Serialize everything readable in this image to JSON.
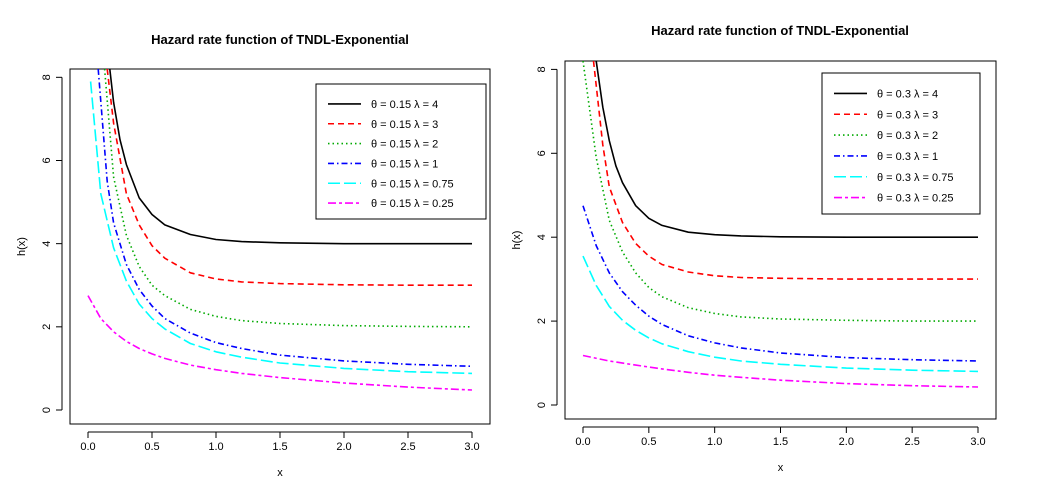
{
  "chart_data": [
    {
      "type": "line",
      "title": "Hazard rate function of TNDL-Exponential",
      "xlabel": "x",
      "ylabel": "h(x)",
      "xlim": [
        0,
        3
      ],
      "ylim": [
        0,
        8.2
      ],
      "xticks": [
        0.0,
        0.5,
        1.0,
        1.5,
        2.0,
        2.5,
        3.0
      ],
      "xtick_labels": [
        "0.0",
        "0.5",
        "1.0",
        "1.5",
        "2.0",
        "2.5",
        "3.0"
      ],
      "yticks": [
        0,
        2,
        4,
        6,
        8
      ],
      "ytick_labels": [
        "0",
        "2",
        "4",
        "6",
        "8"
      ],
      "legend_position": "top-right",
      "series": [
        {
          "name": "θ = 0.15  λ = 4",
          "color": "#000000",
          "dash": "solid",
          "x": [
            0.17,
            0.2,
            0.25,
            0.3,
            0.4,
            0.5,
            0.6,
            0.8,
            1.0,
            1.2,
            1.5,
            2.0,
            2.5,
            3.0
          ],
          "values": [
            8.2,
            7.4,
            6.5,
            5.9,
            5.1,
            4.7,
            4.45,
            4.22,
            4.1,
            4.05,
            4.02,
            4.0,
            4.0,
            4.0
          ]
        },
        {
          "name": "θ = 0.15  λ = 3",
          "color": "#ff0000",
          "dash": "dashed",
          "x": [
            0.15,
            0.2,
            0.3,
            0.4,
            0.5,
            0.6,
            0.8,
            1.0,
            1.2,
            1.5,
            2.0,
            2.5,
            3.0
          ],
          "values": [
            8.2,
            6.9,
            5.2,
            4.45,
            3.95,
            3.65,
            3.3,
            3.15,
            3.08,
            3.04,
            3.01,
            3.0,
            3.0
          ]
        },
        {
          "name": "θ = 0.15  λ = 2",
          "color": "#00aa00",
          "dash": "dotted",
          "x": [
            0.13,
            0.2,
            0.3,
            0.4,
            0.5,
            0.6,
            0.8,
            1.0,
            1.2,
            1.5,
            2.0,
            2.5,
            3.0
          ],
          "values": [
            8.2,
            5.6,
            4.2,
            3.45,
            3.0,
            2.75,
            2.42,
            2.25,
            2.15,
            2.08,
            2.03,
            2.01,
            2.0
          ]
        },
        {
          "name": "θ = 0.15  λ = 1",
          "color": "#0000ff",
          "dash": "dashdot",
          "x": [
            0.08,
            0.15,
            0.2,
            0.3,
            0.4,
            0.5,
            0.6,
            0.8,
            1.0,
            1.2,
            1.5,
            2.0,
            2.5,
            3.0
          ],
          "values": [
            8.2,
            5.5,
            4.5,
            3.5,
            2.9,
            2.5,
            2.2,
            1.85,
            1.62,
            1.48,
            1.32,
            1.18,
            1.1,
            1.05
          ]
        },
        {
          "name": "θ = 0.15  λ = 0.75",
          "color": "#00ffff",
          "dash": "longdash",
          "x": [
            0.02,
            0.1,
            0.2,
            0.3,
            0.4,
            0.5,
            0.6,
            0.8,
            1.0,
            1.2,
            1.5,
            2.0,
            2.5,
            3.0
          ],
          "values": [
            7.9,
            5.2,
            3.9,
            3.1,
            2.55,
            2.2,
            1.95,
            1.6,
            1.4,
            1.27,
            1.13,
            1.0,
            0.92,
            0.88
          ]
        },
        {
          "name": "θ = 0.15  λ = 0.25",
          "color": "#ff00ff",
          "dash": "twodash",
          "x": [
            0.0,
            0.1,
            0.2,
            0.3,
            0.4,
            0.5,
            0.6,
            0.8,
            1.0,
            1.2,
            1.5,
            2.0,
            2.5,
            3.0
          ],
          "values": [
            2.75,
            2.2,
            1.88,
            1.65,
            1.48,
            1.35,
            1.24,
            1.08,
            0.97,
            0.88,
            0.78,
            0.65,
            0.55,
            0.48
          ]
        }
      ]
    },
    {
      "type": "line",
      "title": "Hazard rate function of TNDL-Exponential",
      "xlabel": "x",
      "ylabel": "h(x)",
      "xlim": [
        0,
        3
      ],
      "ylim": [
        0,
        8.2
      ],
      "xticks": [
        0.0,
        0.5,
        1.0,
        1.5,
        2.0,
        2.5,
        3.0
      ],
      "xtick_labels": [
        "0.0",
        "0.5",
        "1.0",
        "1.5",
        "2.0",
        "2.5",
        "3.0"
      ],
      "yticks": [
        0,
        2,
        4,
        6,
        8
      ],
      "ytick_labels": [
        "0",
        "2",
        "4",
        "6",
        "8"
      ],
      "legend_position": "top-right",
      "series": [
        {
          "name": "θ = 0.3  λ = 4",
          "color": "#000000",
          "dash": "solid",
          "x": [
            0.1,
            0.15,
            0.2,
            0.25,
            0.3,
            0.4,
            0.5,
            0.6,
            0.8,
            1.0,
            1.2,
            1.5,
            2.0,
            2.5,
            3.0
          ],
          "values": [
            8.2,
            7.1,
            6.3,
            5.7,
            5.3,
            4.75,
            4.45,
            4.28,
            4.12,
            4.06,
            4.03,
            4.01,
            4.0,
            4.0,
            4.0
          ]
        },
        {
          "name": "θ = 0.3  λ = 3",
          "color": "#ff0000",
          "dash": "dashed",
          "x": [
            0.08,
            0.15,
            0.2,
            0.3,
            0.4,
            0.5,
            0.6,
            0.8,
            1.0,
            1.2,
            1.5,
            2.0,
            2.5,
            3.0
          ],
          "values": [
            8.2,
            6.2,
            5.2,
            4.35,
            3.85,
            3.55,
            3.35,
            3.17,
            3.08,
            3.04,
            3.02,
            3.0,
            3.0,
            3.0
          ]
        },
        {
          "name": "θ = 0.3  λ = 2",
          "color": "#00aa00",
          "dash": "dotted",
          "x": [
            0.0,
            0.1,
            0.2,
            0.3,
            0.4,
            0.5,
            0.6,
            0.8,
            1.0,
            1.2,
            1.5,
            2.0,
            2.5,
            3.0
          ],
          "values": [
            8.2,
            5.9,
            4.4,
            3.65,
            3.15,
            2.8,
            2.58,
            2.32,
            2.18,
            2.1,
            2.05,
            2.02,
            2.0,
            2.0
          ]
        },
        {
          "name": "θ = 0.3  λ = 1",
          "color": "#0000ff",
          "dash": "dashdot",
          "x": [
            0.0,
            0.1,
            0.2,
            0.3,
            0.4,
            0.5,
            0.6,
            0.8,
            1.0,
            1.2,
            1.5,
            2.0,
            2.5,
            3.0
          ],
          "values": [
            4.75,
            3.8,
            3.15,
            2.7,
            2.38,
            2.12,
            1.92,
            1.65,
            1.48,
            1.36,
            1.24,
            1.13,
            1.08,
            1.05
          ]
        },
        {
          "name": "θ = 0.3  λ = 0.75",
          "color": "#00ffff",
          "dash": "longdash",
          "x": [
            0.0,
            0.1,
            0.2,
            0.3,
            0.4,
            0.5,
            0.6,
            0.8,
            1.0,
            1.2,
            1.5,
            2.0,
            2.5,
            3.0
          ],
          "values": [
            3.55,
            2.85,
            2.35,
            2.02,
            1.78,
            1.6,
            1.46,
            1.27,
            1.14,
            1.05,
            0.97,
            0.88,
            0.83,
            0.8
          ]
        },
        {
          "name": "θ = 0.3  λ = 0.25",
          "color": "#ff00ff",
          "dash": "twodash",
          "x": [
            0.0,
            0.2,
            0.4,
            0.6,
            0.8,
            1.0,
            1.2,
            1.5,
            2.0,
            2.5,
            3.0
          ],
          "values": [
            1.18,
            1.05,
            0.95,
            0.86,
            0.78,
            0.71,
            0.66,
            0.59,
            0.51,
            0.46,
            0.43
          ]
        }
      ]
    }
  ]
}
